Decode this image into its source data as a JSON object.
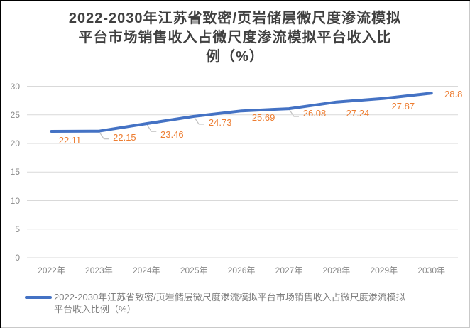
{
  "title": {
    "lines": [
      "2022-2030年江苏省致密/页岩储层微尺度渗流模拟",
      "平台市场销售收入占微尺度渗流模拟平台收入比",
      "例（%）"
    ]
  },
  "chart_data": {
    "type": "line",
    "title": "2022-2030年江苏省致密/页岩储层微尺度渗流模拟平台市场销售收入占微尺度渗流模拟平台收入比例（%）",
    "categories": [
      "2022年",
      "2023年",
      "2024年",
      "2025年",
      "2026年",
      "2027年",
      "2028年",
      "2029年",
      "2030年"
    ],
    "series": [
      {
        "name": "2022-2030年江苏省致密/页岩储层微尺度渗流模拟平台市场销售收入占微尺度渗流模拟平台收入比例（%）",
        "values": [
          22.11,
          22.15,
          23.46,
          24.73,
          25.69,
          26.08,
          27.24,
          27.87,
          28.8
        ]
      }
    ],
    "ylim": [
      0,
      30
    ],
    "yticks": [
      0,
      5,
      10,
      15,
      20,
      25,
      30
    ],
    "grid": true,
    "data_labels_shown": true,
    "legend_position": "bottom-left",
    "colors": {
      "line": "#4472C4",
      "data_label": "#ED7D31",
      "axis_label": "#8a8a8a",
      "gridline": "#D9D9D9",
      "leader_line": "#BFBFBF",
      "title_text": "#404040",
      "legend_text": "#7f7f7f"
    }
  },
  "legend": {
    "lines": [
      "2022-2030年江苏省致密/页岩储层微尺度渗流模拟平台市场销售收入占微尺度渗流模拟",
      "平台收入比例（%）"
    ]
  }
}
